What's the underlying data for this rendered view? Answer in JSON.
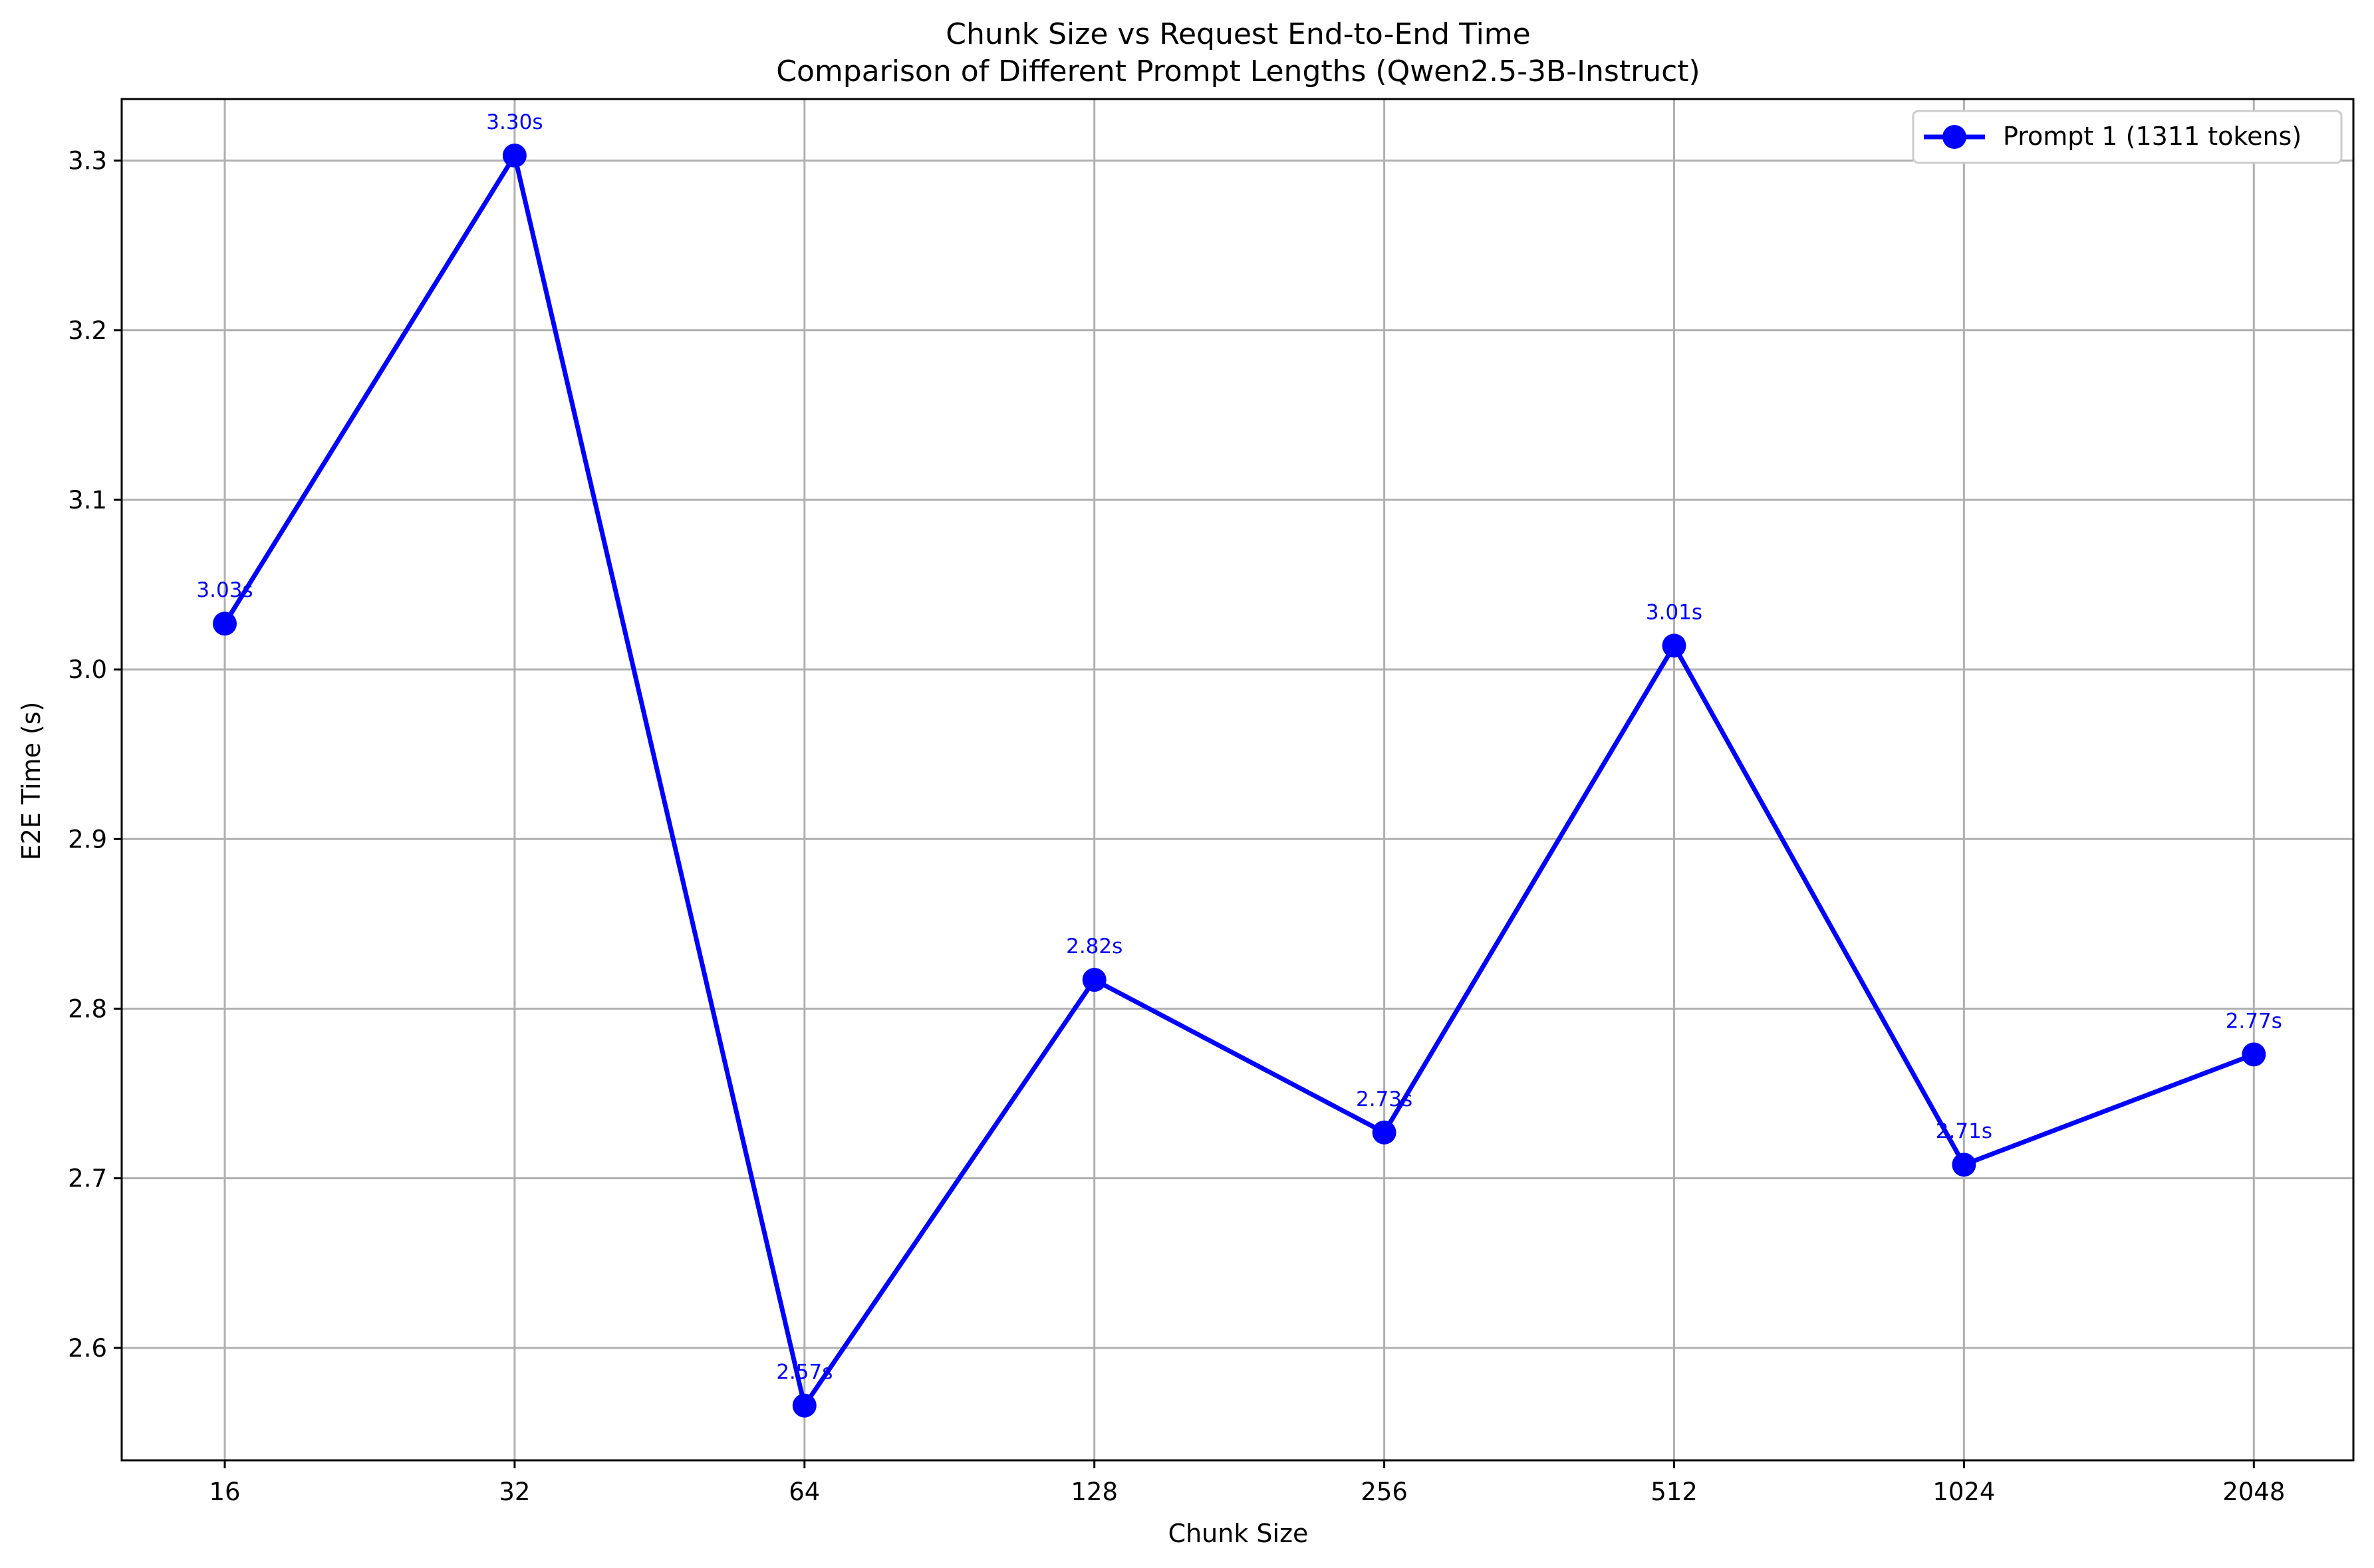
{
  "chart_data": {
    "type": "line",
    "title": "Chunk Size vs Request End-to-End Time",
    "subtitle": "Comparison of Different Prompt Lengths (Qwen2.5-3B-Instruct)",
    "xlabel": "Chunk Size",
    "ylabel": "E2E Time (s)",
    "categories": [
      "16",
      "32",
      "64",
      "128",
      "256",
      "512",
      "1024",
      "2048"
    ],
    "yticks": [
      "2.6",
      "2.7",
      "2.8",
      "2.9",
      "3.0",
      "3.1",
      "3.2",
      "3.3"
    ],
    "ylim": [
      2.5337,
      3.3363
    ],
    "grid": true,
    "legend_position": "top-right",
    "series": [
      {
        "name": "Prompt 1 (1311 tokens)",
        "color": "#0000ff",
        "marker": "circle",
        "values": [
          3.027,
          3.303,
          2.566,
          2.817,
          2.727,
          3.014,
          2.708,
          2.773
        ],
        "labels": [
          "3.03s",
          "3.30s",
          "2.57s",
          "2.82s",
          "2.73s",
          "3.01s",
          "2.71s",
          "2.77s"
        ]
      }
    ]
  }
}
